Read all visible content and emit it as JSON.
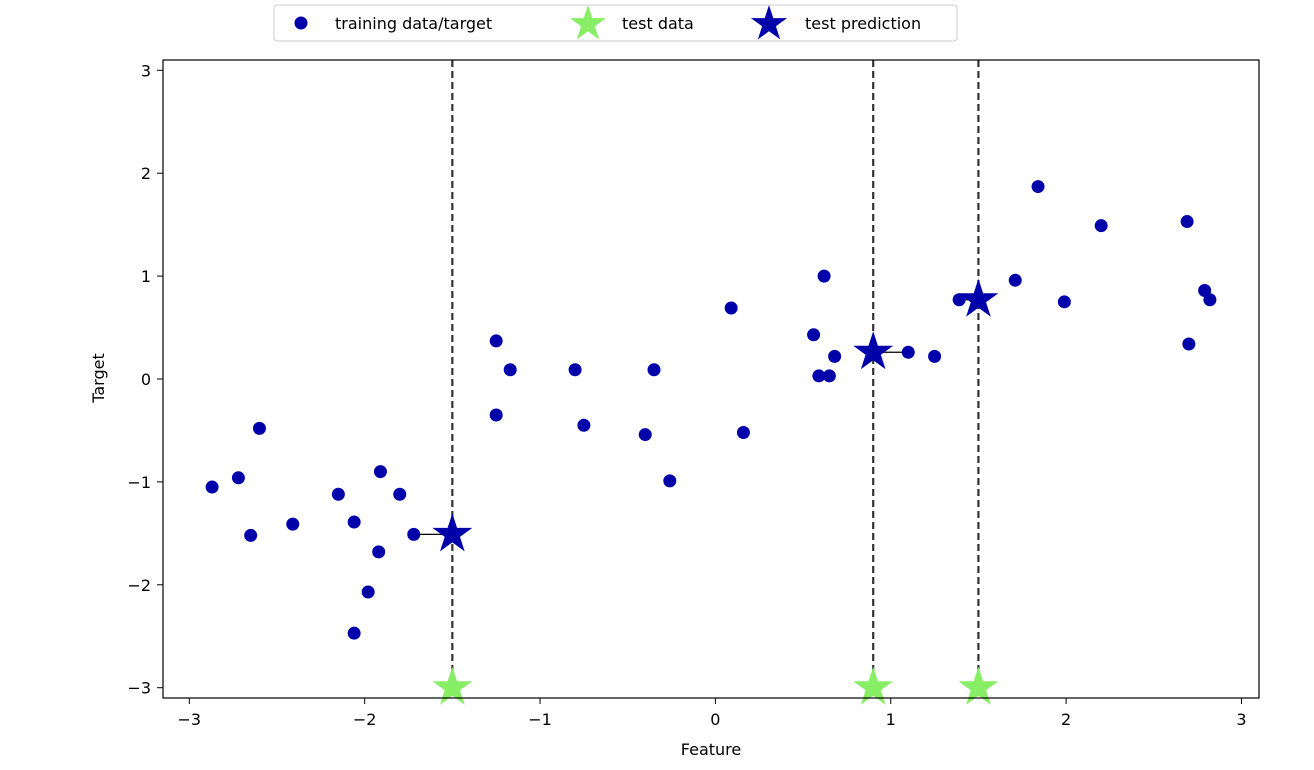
{
  "chart_data": {
    "type": "scatter",
    "title": "",
    "xlabel": "Feature",
    "ylabel": "Target",
    "xlim": [
      -3.15,
      3.1
    ],
    "ylim": [
      -3.1,
      3.1
    ],
    "xticks": [
      -3,
      -2,
      -1,
      0,
      1,
      2,
      3
    ],
    "yticks": [
      -3,
      -2,
      -1,
      0,
      1,
      2,
      3
    ],
    "grid": false,
    "legend_position": "top-center",
    "colors": {
      "training": "#0000aa",
      "test_data": "#88ee66",
      "test_prediction": "#0000aa",
      "dashed_line": "#333333",
      "neighbor_line": "#000000"
    },
    "series": [
      {
        "name": "training data/target",
        "marker": "circle",
        "points": [
          [
            -2.87,
            -1.05
          ],
          [
            -2.72,
            -0.96
          ],
          [
            -2.65,
            -1.52
          ],
          [
            -2.6,
            -0.48
          ],
          [
            -2.41,
            -1.41
          ],
          [
            -2.15,
            -1.12
          ],
          [
            -2.06,
            -1.39
          ],
          [
            -2.06,
            -2.47
          ],
          [
            -1.98,
            -2.07
          ],
          [
            -1.92,
            -1.68
          ],
          [
            -1.91,
            -0.9
          ],
          [
            -1.8,
            -1.12
          ],
          [
            -1.72,
            -1.51
          ],
          [
            -1.25,
            0.37
          ],
          [
            -1.25,
            -0.35
          ],
          [
            -1.17,
            0.09
          ],
          [
            -0.8,
            0.09
          ],
          [
            -0.75,
            -0.45
          ],
          [
            -0.4,
            -0.54
          ],
          [
            -0.35,
            0.09
          ],
          [
            -0.26,
            -0.99
          ],
          [
            0.09,
            0.69
          ],
          [
            0.16,
            -0.52
          ],
          [
            0.56,
            0.43
          ],
          [
            0.59,
            0.03
          ],
          [
            0.62,
            1.0
          ],
          [
            0.65,
            0.03
          ],
          [
            0.68,
            0.22
          ],
          [
            1.1,
            0.26
          ],
          [
            1.25,
            0.22
          ],
          [
            1.39,
            0.77
          ],
          [
            1.71,
            0.96
          ],
          [
            1.84,
            1.87
          ],
          [
            1.99,
            0.75
          ],
          [
            2.2,
            1.49
          ],
          [
            2.69,
            1.53
          ],
          [
            2.7,
            0.34
          ],
          [
            2.79,
            0.86
          ],
          [
            2.82,
            0.77
          ]
        ]
      },
      {
        "name": "test data",
        "marker": "star",
        "points": [
          [
            -1.5,
            -3.0
          ],
          [
            0.9,
            -3.0
          ],
          [
            1.5,
            -3.0
          ]
        ]
      },
      {
        "name": "test prediction",
        "marker": "star",
        "points": [
          [
            -1.5,
            -1.51
          ],
          [
            0.9,
            0.26
          ],
          [
            1.5,
            0.77
          ]
        ]
      }
    ],
    "neighbor_links": [
      {
        "from": [
          -1.72,
          -1.51
        ],
        "to": [
          -1.5,
          -1.51
        ]
      },
      {
        "from": [
          1.1,
          0.26
        ],
        "to": [
          0.9,
          0.26
        ]
      },
      {
        "from": [
          1.39,
          0.77
        ],
        "to": [
          1.5,
          0.77
        ]
      }
    ],
    "legend": [
      {
        "label": "training data/target",
        "marker": "circle"
      },
      {
        "label": "test data",
        "marker": "star-green"
      },
      {
        "label": "test prediction",
        "marker": "star-blue"
      }
    ]
  }
}
